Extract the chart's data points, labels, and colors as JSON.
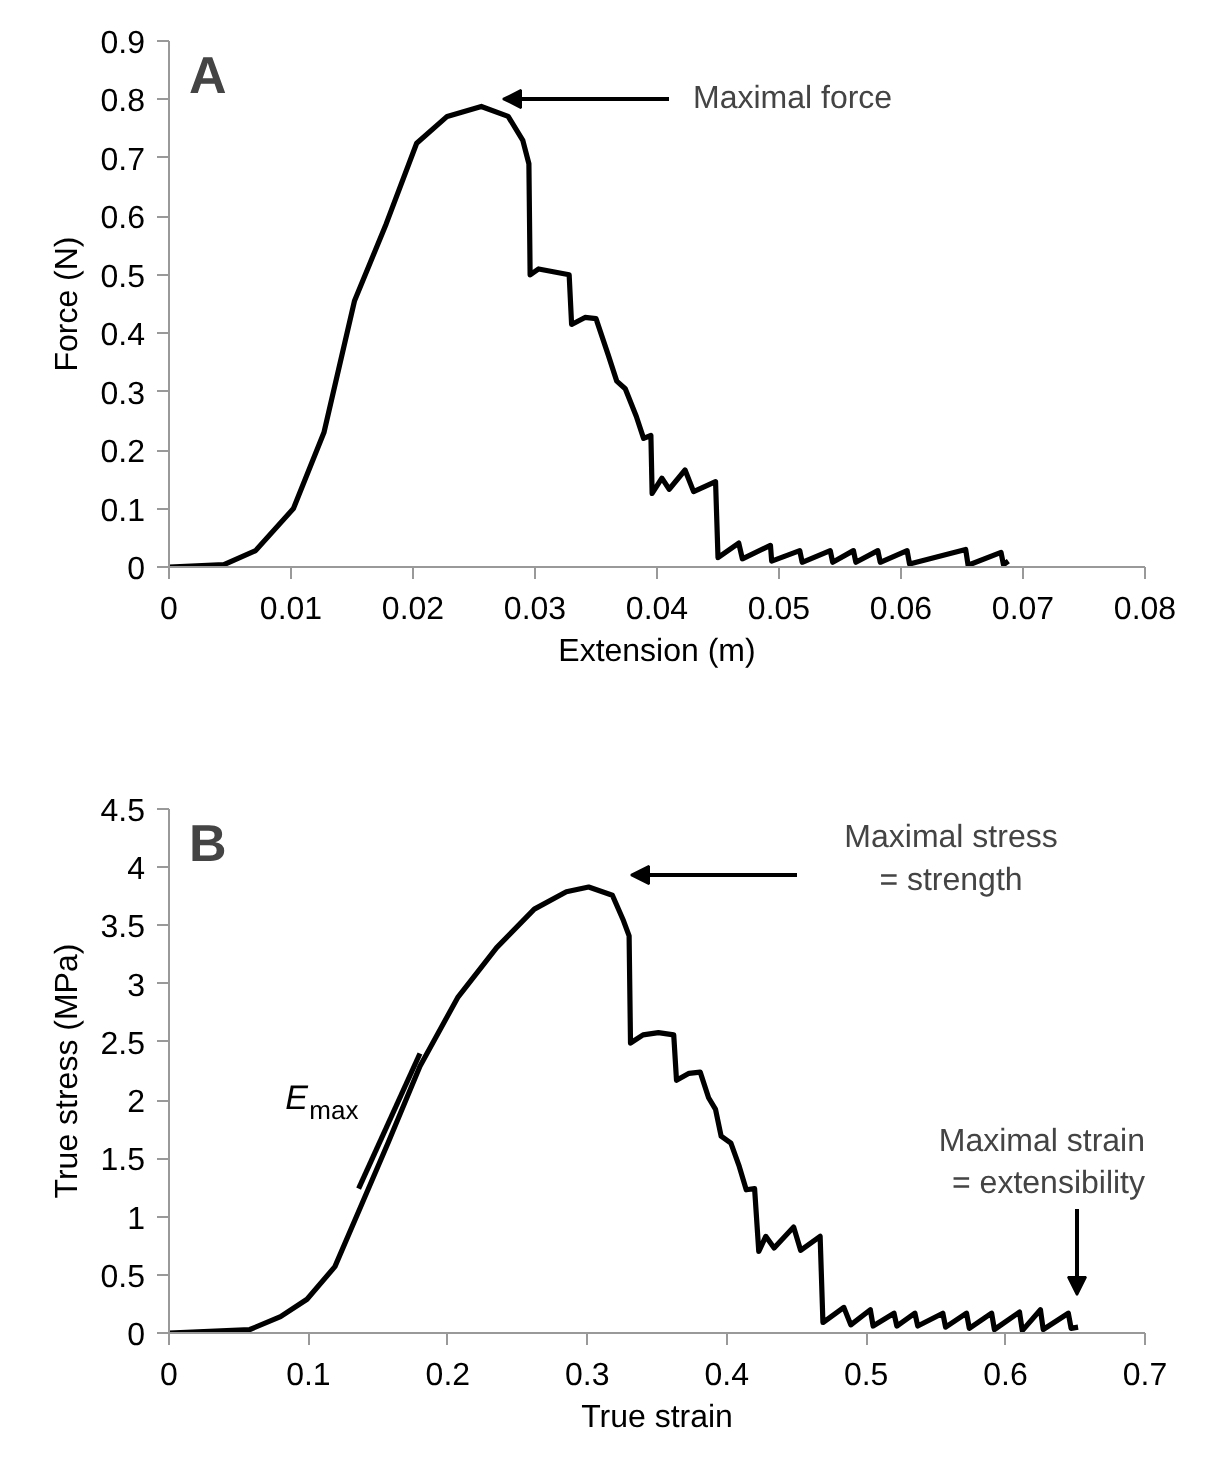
{
  "chart_data": [
    {
      "type": "line",
      "title": "A",
      "xlabel": "Extension (m)",
      "ylabel": "Force (N)",
      "xlim": [
        0,
        0.08
      ],
      "ylim": [
        0,
        0.9
      ],
      "xticks": [
        0,
        0.01,
        0.02,
        0.03,
        0.04,
        0.05,
        0.06,
        0.07,
        0.08
      ],
      "yticks": [
        0,
        0.1,
        0.2,
        0.3,
        0.4,
        0.5,
        0.6,
        0.7,
        0.8,
        0.9
      ],
      "grid": false,
      "marker": "none",
      "line_style": "solid",
      "annotations": [
        "Maximal force"
      ],
      "series": [
        {
          "color": "#000000",
          "x": [
            0,
            0.0045,
            0.0071,
            0.0102,
            0.0127,
            0.0152,
            0.0178,
            0.0203,
            0.0228,
            0.0256,
            0.0278,
            0.029,
            0.0295,
            0.0296,
            0.0303,
            0.0328,
            0.033,
            0.0341,
            0.035,
            0.036,
            0.0367,
            0.0374,
            0.0383,
            0.0389,
            0.0395,
            0.0396,
            0.0404,
            0.041,
            0.0423,
            0.043,
            0.0448,
            0.045,
            0.0467,
            0.047,
            0.0493,
            0.0494,
            0.0517,
            0.0519,
            0.0542,
            0.0544,
            0.0561,
            0.0563,
            0.0581,
            0.0583,
            0.0605,
            0.0607,
            0.0653,
            0.0655,
            0.0682,
            0.0684,
            0.0688
          ],
          "values": [
            0,
            0.004,
            0.028,
            0.1,
            0.23,
            0.455,
            0.587,
            0.725,
            0.771,
            0.788,
            0.771,
            0.73,
            0.69,
            0.5,
            0.51,
            0.5,
            0.415,
            0.427,
            0.425,
            0.363,
            0.318,
            0.305,
            0.258,
            0.22,
            0.225,
            0.126,
            0.152,
            0.133,
            0.166,
            0.129,
            0.146,
            0.016,
            0.041,
            0.014,
            0.037,
            0.01,
            0.028,
            0.008,
            0.028,
            0.008,
            0.028,
            0.008,
            0.028,
            0.008,
            0.028,
            0.005,
            0.03,
            0.003,
            0.025,
            0.004,
            0.01
          ]
        }
      ]
    },
    {
      "type": "line",
      "title": "B",
      "xlabel": "True strain",
      "ylabel": "True stress (MPa)",
      "xlim": [
        0,
        0.7
      ],
      "ylim": [
        0,
        4.5
      ],
      "xticks": [
        0,
        0.1,
        0.2,
        0.3,
        0.4,
        0.5,
        0.6,
        0.7
      ],
      "yticks": [
        0,
        0.5,
        1,
        1.5,
        2,
        2.5,
        3,
        3.5,
        4,
        4.5
      ],
      "grid": false,
      "marker": "none",
      "line_style": "solid",
      "annotations": [
        "Maximal stress\n= strength",
        "Maximal strain\n= extensibility"
      ],
      "series": [
        {
          "color": "#000000",
          "x": [
            0,
            0.058,
            0.08,
            0.099,
            0.119,
            0.138,
            0.157,
            0.18,
            0.207,
            0.235,
            0.262,
            0.285,
            0.301,
            0.318,
            0.326,
            0.33,
            0.331,
            0.34,
            0.351,
            0.362,
            0.364,
            0.373,
            0.381,
            0.387,
            0.392,
            0.396,
            0.403,
            0.409,
            0.414,
            0.42,
            0.423,
            0.428,
            0.434,
            0.448,
            0.453,
            0.467,
            0.469,
            0.484,
            0.489,
            0.503,
            0.505,
            0.52,
            0.522,
            0.535,
            0.537,
            0.555,
            0.557,
            0.572,
            0.574,
            0.59,
            0.592,
            0.61,
            0.612,
            0.625,
            0.627,
            0.645,
            0.647,
            0.652
          ],
          "values": [
            0,
            0.03,
            0.14,
            0.29,
            0.57,
            1.1,
            1.63,
            2.29,
            2.88,
            3.31,
            3.64,
            3.79,
            3.83,
            3.76,
            3.54,
            3.41,
            2.49,
            2.56,
            2.58,
            2.56,
            2.17,
            2.23,
            2.24,
            2.02,
            1.92,
            1.69,
            1.63,
            1.43,
            1.23,
            1.24,
            0.7,
            0.83,
            0.73,
            0.91,
            0.71,
            0.83,
            0.09,
            0.22,
            0.07,
            0.2,
            0.06,
            0.17,
            0.06,
            0.17,
            0.06,
            0.17,
            0.05,
            0.17,
            0.04,
            0.17,
            0.03,
            0.18,
            0.02,
            0.2,
            0.03,
            0.17,
            0.04,
            0.05
          ]
        },
        {
          "name": "E$_{max}$",
          "type": "line",
          "color": "#000000",
          "x": [
            0.136,
            0.18
          ],
          "values": [
            1.24,
            2.4
          ]
        }
      ]
    }
  ]
}
